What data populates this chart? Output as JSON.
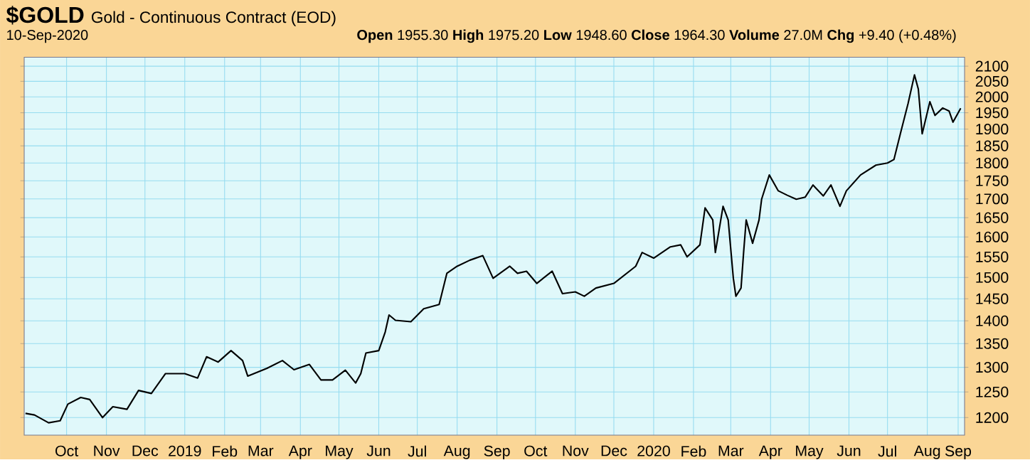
{
  "chart_data": {
    "type": "line",
    "title": "$GOLD",
    "subtitle": "Gold - Continuous Contract (EOD)",
    "annotations": [
      "10-Sep-2020",
      "**Open** 1955.30 **High** 1975.20 **Low** 1948.60 **Close** 1964.30 **Volume** 27.0M **Chg** +9.40 (+0.48%)"
    ],
    "x": [
      "2018-09-13",
      "2018-09-20",
      "2018-10-01",
      "2018-10-10",
      "2018-10-16",
      "2018-10-26",
      "2018-11-02",
      "2018-11-12",
      "2018-11-20",
      "2018-12-01",
      "2018-12-10",
      "2018-12-20",
      "2018-12-31",
      "2019-01-15",
      "2019-01-25",
      "2019-02-01",
      "2019-02-10",
      "2019-02-20",
      "2019-03-01",
      "2019-03-05",
      "2019-03-20",
      "2019-04-01",
      "2019-04-10",
      "2019-04-22",
      "2019-05-01",
      "2019-05-10",
      "2019-05-20",
      "2019-05-28",
      "2019-06-01",
      "2019-06-05",
      "2019-06-15",
      "2019-06-20",
      "2019-06-23",
      "2019-06-28",
      "2019-07-10",
      "2019-07-20",
      "2019-08-01",
      "2019-08-07",
      "2019-08-15",
      "2019-08-25",
      "2019-09-04",
      "2019-09-12",
      "2019-09-25",
      "2019-10-01",
      "2019-10-08",
      "2019-10-16",
      "2019-10-28",
      "2019-11-05",
      "2019-11-15",
      "2019-11-22",
      "2019-12-01",
      "2019-12-15",
      "2020-01-01",
      "2020-01-06",
      "2020-01-15",
      "2020-01-28",
      "2020-02-05",
      "2020-02-10",
      "2020-02-20",
      "2020-02-24",
      "2020-03-01",
      "2020-03-03",
      "2020-03-09",
      "2020-03-13",
      "2020-03-17",
      "2020-03-19",
      "2020-03-23",
      "2020-03-25",
      "2020-03-27",
      "2020-04-01",
      "2020-04-06",
      "2020-04-08",
      "2020-04-14",
      "2020-04-21",
      "2020-04-28",
      "2020-05-05",
      "2020-05-12",
      "2020-05-18",
      "2020-05-26",
      "2020-06-01",
      "2020-06-08",
      "2020-06-13",
      "2020-06-24",
      "2020-07-06",
      "2020-07-15",
      "2020-07-20",
      "2020-07-25",
      "2020-07-31",
      "2020-08-05",
      "2020-08-08",
      "2020-08-11",
      "2020-08-17",
      "2020-08-21",
      "2020-08-27",
      "2020-09-01",
      "2020-09-04",
      "2020-09-10"
    ],
    "series": [
      {
        "color": "#000000",
        "values": [
          1208,
          1205,
          1190,
          1194,
          1226,
          1239,
          1235,
          1200,
          1221,
          1216,
          1253,
          1247,
          1287,
          1287,
          1278,
          1322,
          1311,
          1335,
          1314,
          1282,
          1298,
          1314,
          1295,
          1306,
          1274,
          1274,
          1294,
          1268,
          1287,
          1330,
          1335,
          1375,
          1413,
          1401,
          1398,
          1427,
          1437,
          1510,
          1527,
          1542,
          1553,
          1498,
          1527,
          1510,
          1515,
          1486,
          1515,
          1462,
          1466,
          1456,
          1475,
          1486,
          1527,
          1561,
          1547,
          1575,
          1580,
          1550,
          1580,
          1676,
          1644,
          1561,
          1680,
          1644,
          1498,
          1456,
          1475,
          1561,
          1644,
          1584,
          1644,
          1699,
          1766,
          1722,
          1710,
          1699,
          1705,
          1738,
          1708,
          1738,
          1680,
          1722,
          1766,
          1794,
          1800,
          1810,
          1886,
          1979,
          2071,
          2025,
          1886,
          1985,
          1942,
          1965,
          1955,
          1921,
          1964
        ]
      }
    ],
    "xlim": [
      "2018-09-12",
      "2020-09-13"
    ],
    "xticks": [
      {
        "value": "2018-10-15",
        "label": "Oct"
      },
      {
        "value": "2018-11-15",
        "label": "Nov"
      },
      {
        "value": "2018-12-15",
        "label": "Dec"
      },
      {
        "value": "2019-01-15",
        "label": "2019"
      },
      {
        "value": "2019-02-15",
        "label": "Feb"
      },
      {
        "value": "2019-03-15",
        "label": "Mar"
      },
      {
        "value": "2019-04-15",
        "label": "Apr"
      },
      {
        "value": "2019-05-15",
        "label": "May"
      },
      {
        "value": "2019-06-15",
        "label": "Jun"
      },
      {
        "value": "2019-07-15",
        "label": "Jul"
      },
      {
        "value": "2019-08-15",
        "label": "Aug"
      },
      {
        "value": "2019-09-15",
        "label": "Sep"
      },
      {
        "value": "2019-10-15",
        "label": "Oct"
      },
      {
        "value": "2019-11-15",
        "label": "Nov"
      },
      {
        "value": "2019-12-15",
        "label": "Dec"
      },
      {
        "value": "2020-01-15",
        "label": "2020"
      },
      {
        "value": "2020-02-15",
        "label": "Feb"
      },
      {
        "value": "2020-03-15",
        "label": "Mar"
      },
      {
        "value": "2020-04-15",
        "label": "Apr"
      },
      {
        "value": "2020-05-15",
        "label": "May"
      },
      {
        "value": "2020-06-15",
        "label": "Jun"
      },
      {
        "value": "2020-07-15",
        "label": "Jul"
      },
      {
        "value": "2020-08-15",
        "label": "Aug"
      },
      {
        "value": "2020-09-08",
        "label": "Sep"
      }
    ],
    "ylim": [
      1167,
      2130
    ],
    "yticks": [
      1200,
      1250,
      1300,
      1350,
      1400,
      1450,
      1500,
      1550,
      1600,
      1650,
      1700,
      1750,
      1800,
      1850,
      1900,
      1950,
      2000,
      2050,
      2100
    ],
    "log": "y",
    "grid": true,
    "marker": "none",
    "line_style": "solid"
  }
}
